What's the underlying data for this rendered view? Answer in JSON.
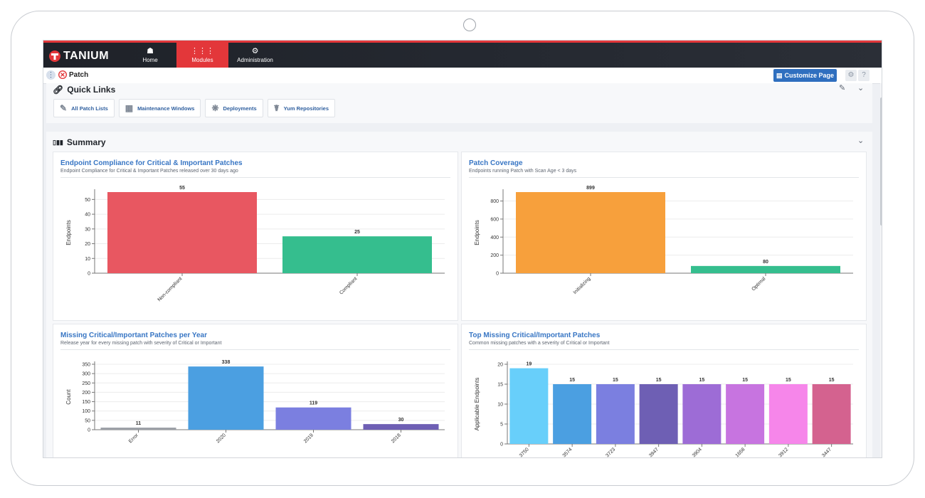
{
  "nav": {
    "logo_text": "TANIUM",
    "items": [
      {
        "label": "Home",
        "icon": "home-icon"
      },
      {
        "label": "Modules",
        "icon": "grid-icon"
      },
      {
        "label": "Administration",
        "icon": "gears-icon"
      }
    ],
    "active": "Modules"
  },
  "subheader": {
    "page_title": "Patch",
    "customize_label": "Customize Page"
  },
  "quick_links": {
    "title": "Quick Links",
    "buttons": [
      {
        "label": "All Patch Lists",
        "icon": "list-edit-icon"
      },
      {
        "label": "Maintenance Windows",
        "icon": "calendar-icon"
      },
      {
        "label": "Deployments",
        "icon": "deploy-icon"
      },
      {
        "label": "Yum Repositories",
        "icon": "repository-icon"
      }
    ]
  },
  "summary": {
    "title": "Summary"
  },
  "colors": {
    "accent": "#e3373a",
    "link": "#3876c4",
    "red": "#e85761",
    "green": "#35be8e",
    "orange": "#f7a03c",
    "blue": "#4b9fe1",
    "gray": "#9a9ea5"
  },
  "cards": [
    {
      "title": "Endpoint Compliance for Critical & Important Patches",
      "subtitle": "Endpoint Compliance for Critical & Important Patches released over 30 days ago"
    },
    {
      "title": "Patch Coverage",
      "subtitle": "Endpoints running Patch with Scan Age < 3 days"
    },
    {
      "title": "Missing Critical/Important Patches per Year",
      "subtitle": "Release year for every missing patch with severity of Critical or Important"
    },
    {
      "title": "Top Missing Critical/Important Patches",
      "subtitle": "Common missing patches with a severity of Critical or Important"
    }
  ],
  "chart_data": [
    {
      "type": "bar",
      "categories": [
        "Non-compliant",
        "Compliant"
      ],
      "values": [
        55,
        25
      ],
      "colors": [
        "#e85761",
        "#35be8e"
      ],
      "ylabel": "Endpoints",
      "ylim": [
        0,
        55
      ],
      "yticks": [
        0,
        10,
        20,
        30,
        40,
        50
      ],
      "grid": true
    },
    {
      "type": "bar",
      "categories": [
        "Initializing",
        "Optimal"
      ],
      "values": [
        899,
        80
      ],
      "colors": [
        "#f7a03c",
        "#35be8e"
      ],
      "ylabel": "Endpoints",
      "ylim": [
        0,
        899
      ],
      "yticks": [
        0,
        200,
        400,
        600,
        800
      ],
      "grid": true
    },
    {
      "type": "bar",
      "categories": [
        "Error",
        "2020",
        "2019",
        "2018"
      ],
      "values": [
        11,
        338,
        119,
        30
      ],
      "colors": [
        "#9a9ea5",
        "#4b9fe1",
        "#7b7fe0",
        "#6e5fb4"
      ],
      "ylabel": "Count",
      "ylim": [
        0,
        350
      ],
      "yticks": [
        0,
        50,
        100,
        150,
        200,
        250,
        300,
        350
      ],
      "grid": true
    },
    {
      "type": "bar",
      "categories": [
        "3750",
        "3574",
        "3723",
        "3947",
        "3904",
        "1658",
        "3912",
        "3447"
      ],
      "values": [
        19,
        15,
        15,
        15,
        15,
        15,
        15,
        15
      ],
      "colors": [
        "#68cffa",
        "#4b9fe1",
        "#7b7fe0",
        "#6e5fb4",
        "#9d6cd6",
        "#c774e0",
        "#f686ea",
        "#d4628f"
      ],
      "ylabel": "Applicable Endpoints",
      "ylim": [
        0,
        20
      ],
      "yticks": [
        0,
        5,
        10,
        15,
        20
      ],
      "grid": true
    }
  ]
}
